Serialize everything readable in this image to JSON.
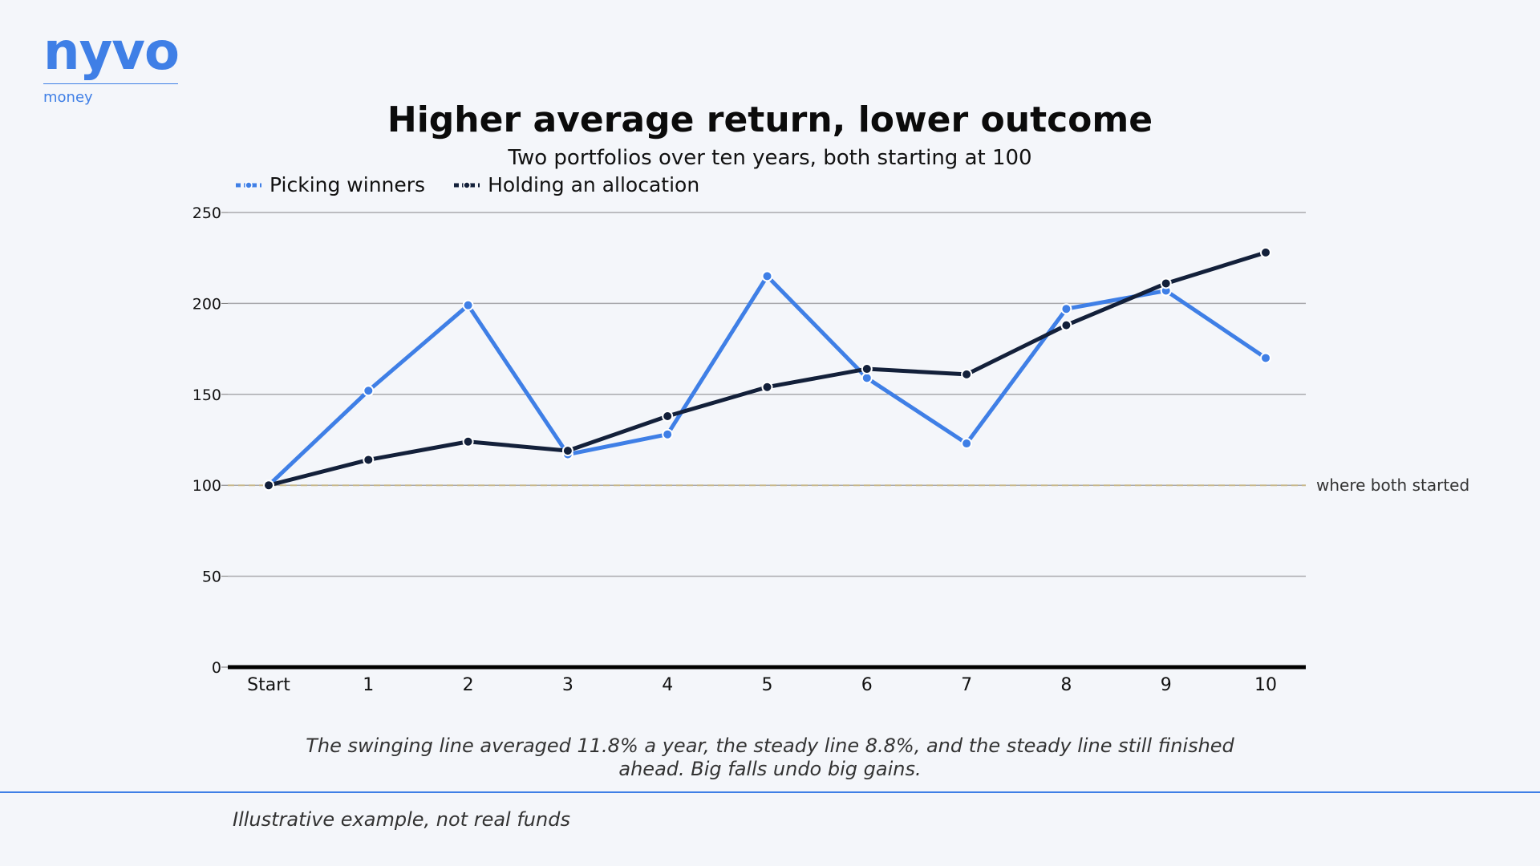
{
  "brand": {
    "name": "nyvo",
    "tagline": "money"
  },
  "chart_data": {
    "type": "line",
    "title": "Higher average return, lower outcome",
    "subtitle": "Two portfolios over ten years, both starting at 100",
    "categories": [
      "Start",
      "1",
      "2",
      "3",
      "4",
      "5",
      "6",
      "7",
      "8",
      "9",
      "10"
    ],
    "series": [
      {
        "name": "Picking winners",
        "color": "#3f7fe6",
        "values": [
          100,
          152,
          199,
          117,
          128,
          215,
          159,
          123,
          197,
          207,
          170
        ]
      },
      {
        "name": "Holding an allocation",
        "color": "#13203a",
        "values": [
          100,
          114,
          124,
          119,
          138,
          154,
          164,
          161,
          188,
          211,
          228
        ]
      }
    ],
    "yticks": [
      0,
      50,
      100,
      150,
      200,
      250
    ],
    "ylim": [
      0,
      250
    ],
    "grid": true,
    "legend_position": "top-left",
    "reference_line": {
      "value": 100,
      "label": "where both started",
      "color": "#c8b88a"
    }
  },
  "takeaway": "The swinging line averaged 11.8% a year, the steady line 8.8%, and the steady line still finished ahead. Big falls undo big gains.",
  "footnote": "Illustrative example, not real funds"
}
